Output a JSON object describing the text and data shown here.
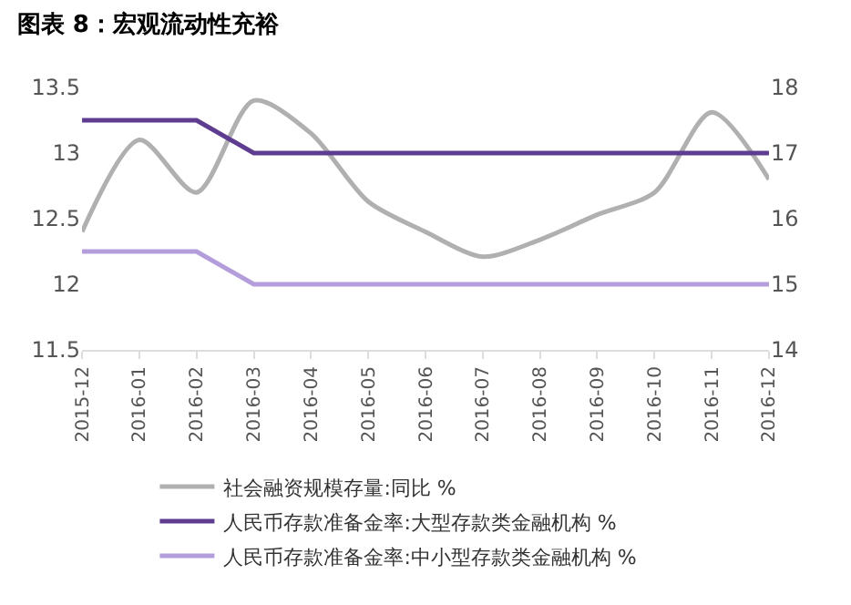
{
  "chart_data": {
    "type": "line",
    "title": "图表 8：宏观流动性充裕",
    "categories": [
      "2015-12",
      "2016-01",
      "2016-02",
      "2016-03",
      "2016-04",
      "2016-05",
      "2016-06",
      "2016-07",
      "2016-08",
      "2016-09",
      "2016-10",
      "2016-11",
      "2016-12"
    ],
    "series": [
      {
        "name": "社会融资规模存量:同比 %",
        "color": "#b0b0b0",
        "values": [
          12.4,
          13.1,
          12.7,
          13.4,
          13.15,
          12.63,
          12.4,
          12.21,
          12.34,
          12.53,
          12.7,
          13.31,
          12.8
        ]
      },
      {
        "name": "人民币存款准备金率:大型存款类金融机构 %",
        "color": "#5e3c8f",
        "axis": "y2",
        "values": [
          17.5,
          17.5,
          17.5,
          17,
          17,
          17,
          17,
          17,
          17,
          17,
          17,
          17,
          17
        ]
      },
      {
        "name": "人民币存款准备金率:中小型存款类金融机构 %",
        "color": "#b39ddb",
        "axis": "y2",
        "values": [
          15.5,
          15.5,
          15.5,
          15,
          15,
          15,
          15,
          15,
          15,
          15,
          15,
          15,
          15
        ]
      }
    ],
    "ylim": [
      11.5,
      13.5
    ],
    "yticks": [
      11.5,
      12,
      12.5,
      13,
      13.5
    ],
    "y2lim": [
      14,
      18
    ],
    "y2ticks": [
      14,
      15,
      16,
      17,
      18
    ],
    "grid": false,
    "legend": "bottom",
    "marker": "none",
    "line_style": "solid"
  }
}
